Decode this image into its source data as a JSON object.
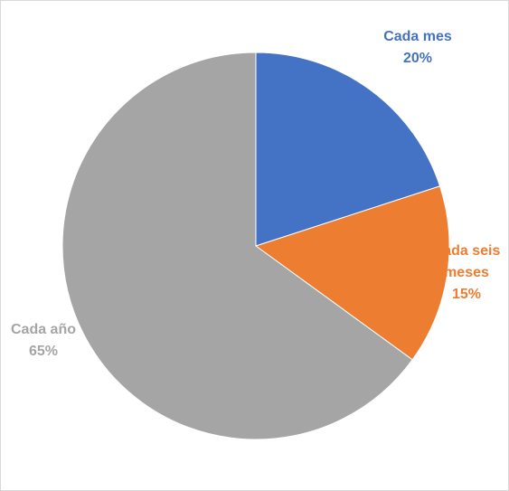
{
  "chart_data": {
    "type": "pie",
    "categories": [
      "Cada mes",
      "Cada seis meses",
      "Cada año"
    ],
    "values": [
      20,
      15,
      65
    ],
    "value_labels": [
      "20%",
      "15%",
      "65%"
    ],
    "colors": [
      "#4472c4",
      "#ed7d31",
      "#a5a5a5"
    ]
  }
}
